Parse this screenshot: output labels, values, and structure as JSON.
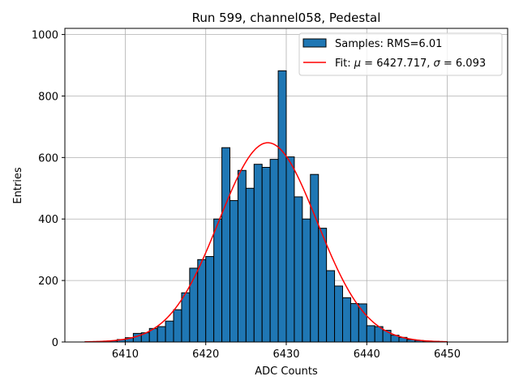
{
  "chart_data": {
    "type": "bar",
    "title": "Run 599, channel058, Pedestal",
    "xlabel": "ADC Counts",
    "ylabel": "Entries",
    "xlim": [
      6402.5,
      6457.5
    ],
    "ylim": [
      0,
      1020
    ],
    "xticks": [
      6410,
      6420,
      6430,
      6440,
      6450
    ],
    "yticks": [
      0,
      200,
      400,
      600,
      800,
      1000
    ],
    "grid": true,
    "bin_width": 1,
    "histogram": {
      "name": "Samples: RMS=6.01",
      "color": "#1f77b4",
      "bin_starts": [
        6405,
        6406,
        6407,
        6408,
        6409,
        6410,
        6411,
        6412,
        6413,
        6414,
        6415,
        6416,
        6417,
        6418,
        6419,
        6420,
        6421,
        6422,
        6423,
        6424,
        6425,
        6426,
        6427,
        6428,
        6429,
        6430,
        6431,
        6432,
        6433,
        6434,
        6435,
        6436,
        6437,
        6438,
        6439,
        6440,
        6441,
        6442,
        6443,
        6444,
        6445,
        6446,
        6447,
        6448,
        6449
      ],
      "counts": [
        1,
        1,
        2,
        4,
        8,
        14,
        28,
        30,
        44,
        50,
        68,
        105,
        160,
        240,
        268,
        278,
        400,
        632,
        460,
        558,
        500,
        578,
        568,
        594,
        882,
        602,
        472,
        400,
        545,
        370,
        232,
        182,
        144,
        125,
        124,
        53,
        50,
        38,
        22,
        15,
        8,
        5,
        3,
        2,
        1
      ]
    },
    "fit": {
      "name_prefix": "Fit: ",
      "mu_label": "μ",
      "mu_text": " = 6427.717, ",
      "sigma_label": "σ",
      "sigma_text": " = 6.093",
      "mu": 6427.717,
      "sigma": 6.093,
      "amplitude": 648,
      "x_range": [
        6405,
        6450
      ],
      "color": "#ff0000"
    },
    "legend_position": "upper right"
  }
}
